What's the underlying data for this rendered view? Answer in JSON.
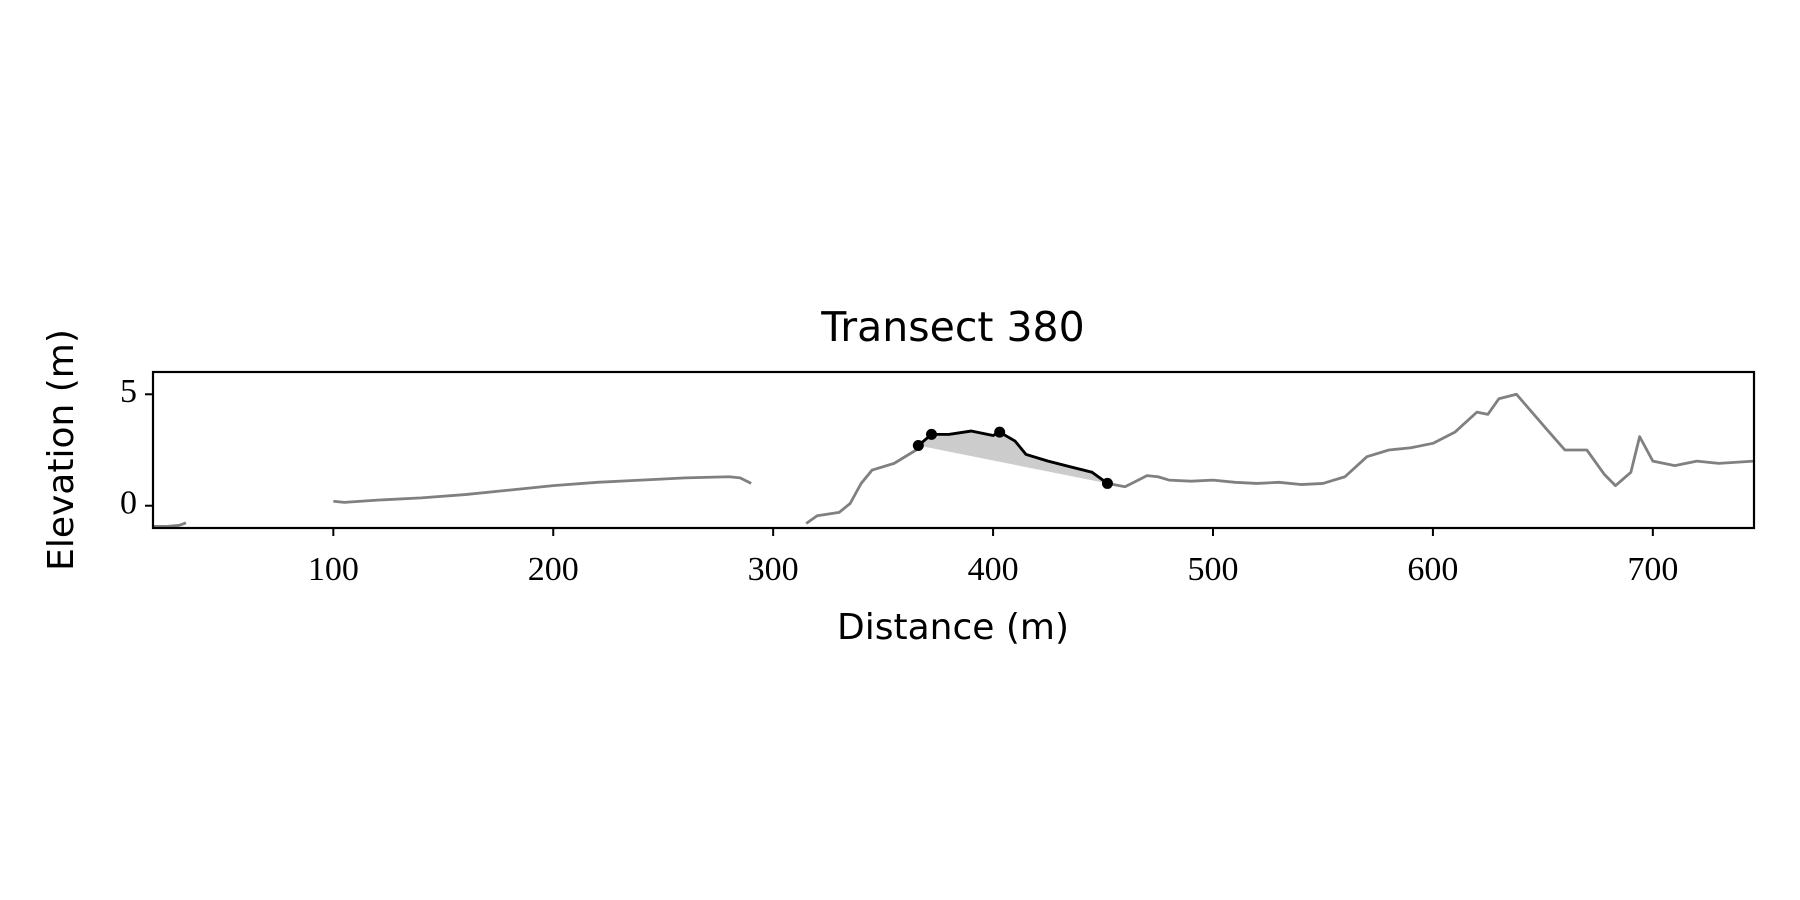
{
  "chart_data": {
    "type": "line",
    "title": "Transect 380",
    "x_label": "Distance (m)",
    "y_label": "Elevation (m)",
    "xlim": [
      18,
      746
    ],
    "ylim": [
      -1,
      6
    ],
    "xticks": [
      100,
      200,
      300,
      400,
      500,
      600,
      700
    ],
    "yticks": [
      0,
      5
    ],
    "series": [
      {
        "color": "#808080",
        "x": [
          18,
          25,
          30,
          33
        ],
        "values": [
          -0.93,
          -0.92,
          -0.88,
          -0.77
        ]
      },
      {
        "color": "#808080",
        "x": [
          100,
          105,
          120,
          140,
          160,
          180,
          200,
          220,
          240,
          260,
          280,
          285,
          290
        ],
        "values": [
          0.2,
          0.15,
          0.25,
          0.35,
          0.5,
          0.7,
          0.9,
          1.05,
          1.15,
          1.25,
          1.3,
          1.25,
          1.0
        ]
      },
      {
        "color": "#808080",
        "x": [
          315,
          320,
          330,
          335,
          340,
          345,
          355,
          365,
          366,
          372,
          380,
          390,
          400,
          403,
          410,
          415,
          425,
          435,
          445,
          452,
          460,
          470,
          475,
          480,
          490,
          500,
          510,
          520,
          530,
          540,
          550,
          560,
          570,
          580,
          590,
          600,
          610,
          620,
          625,
          630,
          638,
          645,
          652,
          660,
          670,
          678,
          683,
          690,
          694,
          700,
          710,
          720,
          730,
          746
        ],
        "values": [
          -0.8,
          -0.45,
          -0.3,
          0.1,
          1.0,
          1.6,
          1.9,
          2.5,
          2.7,
          3.2,
          3.2,
          3.35,
          3.15,
          3.3,
          2.9,
          2.3,
          2.0,
          1.75,
          1.5,
          1.0,
          0.85,
          1.35,
          1.3,
          1.15,
          1.1,
          1.15,
          1.05,
          1.0,
          1.05,
          0.95,
          1.0,
          1.3,
          2.2,
          2.5,
          2.6,
          2.8,
          3.3,
          4.2,
          4.1,
          4.8,
          5.0,
          4.2,
          3.4,
          2.5,
          2.5,
          1.4,
          0.9,
          1.5,
          3.1,
          2.0,
          1.8,
          2.0,
          1.9,
          2.0
        ]
      },
      {
        "color": "#000000",
        "x": [
          366,
          372,
          380,
          390,
          400,
          403,
          410,
          415,
          425,
          435,
          445,
          452
        ],
        "values": [
          2.7,
          3.2,
          3.2,
          3.35,
          3.15,
          3.3,
          2.9,
          2.3,
          2.0,
          1.75,
          1.5,
          1.0
        ]
      }
    ],
    "points": {
      "color": "#000000",
      "x": [
        366,
        372,
        403,
        452
      ],
      "values": [
        2.7,
        3.2,
        3.3,
        1.0
      ]
    },
    "fill_color": "#cccccc"
  }
}
